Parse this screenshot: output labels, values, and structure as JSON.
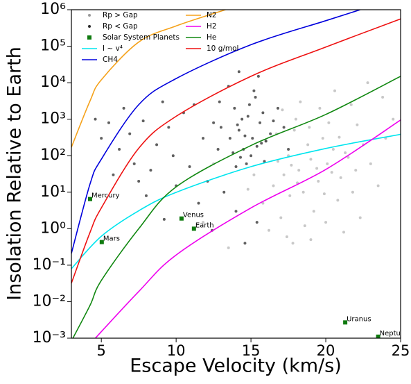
{
  "chart_data": {
    "type": "scatter",
    "xlabel": "Escape Velocity (km/s)",
    "ylabel": "Insolation Relative to Earth",
    "xlim": [
      3,
      25
    ],
    "ylim": [
      0.001,
      1000000
    ],
    "yscale": "log",
    "xticks": [
      5,
      10,
      15,
      20,
      25
    ],
    "yticks": [
      {
        "value": 0.001,
        "label": "10⁻³"
      },
      {
        "value": 0.01,
        "label": "10⁻²"
      },
      {
        "value": 0.1,
        "label": "10⁻¹"
      },
      {
        "value": 1,
        "label": "10⁰"
      },
      {
        "value": 10,
        "label": "10¹"
      },
      {
        "value": 100,
        "label": "10²"
      },
      {
        "value": 1000,
        "label": "10³"
      },
      {
        "value": 10000,
        "label": "10⁴"
      },
      {
        "value": 100000,
        "label": "10⁵"
      },
      {
        "value": 1000000,
        "label": "10⁶"
      }
    ],
    "series": [
      {
        "name": "Rp > Gap",
        "color": "#9a9a9a",
        "marker": "dot",
        "x": [
          17.5,
          18.2,
          18.8,
          19.5,
          17.9,
          20.1,
          18.5,
          19.0,
          17.2,
          20.5,
          21.0,
          18.0,
          19.8,
          16.8,
          17.6,
          20.8,
          21.5,
          19.2,
          18.6,
          17.0,
          16.5,
          22.0,
          22.5,
          21.8,
          20.2,
          23.0,
          23.5,
          24.0,
          19.6,
          18.3,
          17.4,
          16.2,
          15.8,
          15.2,
          14.8,
          22.3,
          21.2,
          20.0,
          24.5,
          23.8,
          22.8,
          20.6,
          19.0,
          17.8,
          16.0,
          18.9,
          19.4,
          20.9,
          21.7,
          17.1,
          12.5,
          11.8,
          13.5,
          18.1,
          19.9,
          16.7,
          20.4,
          21.3,
          22.1,
          17.7
        ],
        "y": [
          100,
          40,
          200,
          20,
          500,
          60,
          10,
          80,
          30,
          150,
          25,
          1000,
          300,
          70,
          8,
          6,
          90,
          3,
          1.2,
          2,
          15,
          40,
          200,
          10,
          800,
          60,
          15,
          300,
          2000,
          3000,
          0.6,
          0.9,
          5,
          30,
          12,
          2,
          0.8,
          1.5,
          1000,
          4000,
          10000,
          6000,
          0.5,
          0.4,
          250,
          600,
          45,
          320,
          2500,
          1800,
          60,
          1.5,
          0.3,
          18,
          9,
          400,
          35,
          120,
          700,
          55
        ]
      },
      {
        "name": "Rp < Gap",
        "color": "#2a2a2a",
        "marker": "dot",
        "x": [
          14.2,
          14.8,
          15.1,
          14.5,
          15.6,
          13.9,
          14.3,
          15.3,
          16.0,
          14.7,
          15.8,
          14.1,
          15.0,
          16.3,
          13.6,
          14.9,
          15.4,
          14.4,
          15.9,
          14.6,
          13.8,
          15.2,
          16.5,
          14.0,
          15.7,
          12.5,
          11.8,
          10.5,
          9.5,
          8.7,
          7.8,
          6.9,
          6.2,
          5.5,
          5.0,
          4.6,
          7.2,
          8.3,
          9.8,
          11.2,
          12.9,
          10.9,
          12.1,
          9.1,
          13.2,
          6.5,
          8.0,
          10.0,
          11.5,
          12.8,
          7.5,
          13.5,
          14.2,
          15.5,
          16.8,
          17.2,
          17.5,
          14.6,
          14.0,
          15.4,
          5.8,
          9.2,
          12.4,
          13.0
        ],
        "y": [
          500,
          1200,
          300,
          150,
          800,
          2000,
          90,
          4000,
          250,
          60,
          1500,
          700,
          100,
          400,
          300,
          2500,
          180,
          1000,
          70,
          350,
          120,
          6000,
          900,
          50,
          220,
          800,
          300,
          1500,
          600,
          200,
          900,
          400,
          150,
          800,
          300,
          1000,
          60,
          40,
          100,
          2500,
          3000,
          50,
          20,
          3000,
          10,
          2000,
          8,
          15,
          5,
          150,
          20,
          8000,
          20000,
          15000,
          2000,
          600,
          150,
          0.4,
          3,
          1.5,
          30,
          1.8,
          0.9,
          600
        ]
      },
      {
        "name": "Solar System Planets",
        "color": "#0f7a0f",
        "marker": "square",
        "labels": [
          "Mercury",
          "Venus",
          "Earth",
          "Mars",
          "Uranus",
          "Neptune"
        ],
        "x": [
          4.25,
          10.36,
          11.19,
          5.03,
          21.3,
          23.5
        ],
        "y": [
          6.5,
          1.9,
          1.0,
          0.43,
          0.0027,
          0.0011
        ]
      }
    ],
    "lines": [
      {
        "name": "I ~ v⁴",
        "color": "#00e5ee",
        "x": [
          3,
          5,
          7.5,
          10,
          15,
          20,
          25
        ],
        "y": [
          0.08,
          0.62,
          3.1,
          9.9,
          50,
          158,
          386
        ]
      },
      {
        "name": "CH4",
        "color": "#0000dd",
        "x": [
          3,
          4.25,
          5,
          7.5,
          10,
          15,
          20,
          22.3
        ],
        "y": [
          0.21,
          17,
          80,
          2500,
          13000,
          110000,
          500000,
          1000000
        ]
      },
      {
        "name": "N2",
        "color": "#f5a21b",
        "x": [
          3,
          4.25,
          5,
          7.5,
          10,
          13.3
        ],
        "y": [
          170,
          3200,
          12000,
          130000,
          360000,
          1000000
        ]
      },
      {
        "name": "H2",
        "color": "#ee00ee",
        "x": [
          4.6,
          7.5,
          10,
          15,
          20,
          25
        ],
        "y": [
          0.001,
          0.019,
          0.19,
          3.7,
          42,
          950
        ]
      },
      {
        "name": "He",
        "color": "#118811",
        "x": [
          3.1,
          4.25,
          5,
          7.5,
          10,
          15,
          20,
          25
        ],
        "y": [
          0.001,
          0.008,
          0.038,
          1,
          14,
          190,
          1350,
          15000
        ]
      },
      {
        "name": "10 g/mol",
        "color": "#ee1111",
        "x": [
          3,
          4.25,
          5,
          7.5,
          10,
          15,
          20,
          25
        ],
        "y": [
          0.032,
          0.8,
          3.7,
          160,
          1200,
          15000,
          95000,
          560000
        ]
      }
    ]
  }
}
